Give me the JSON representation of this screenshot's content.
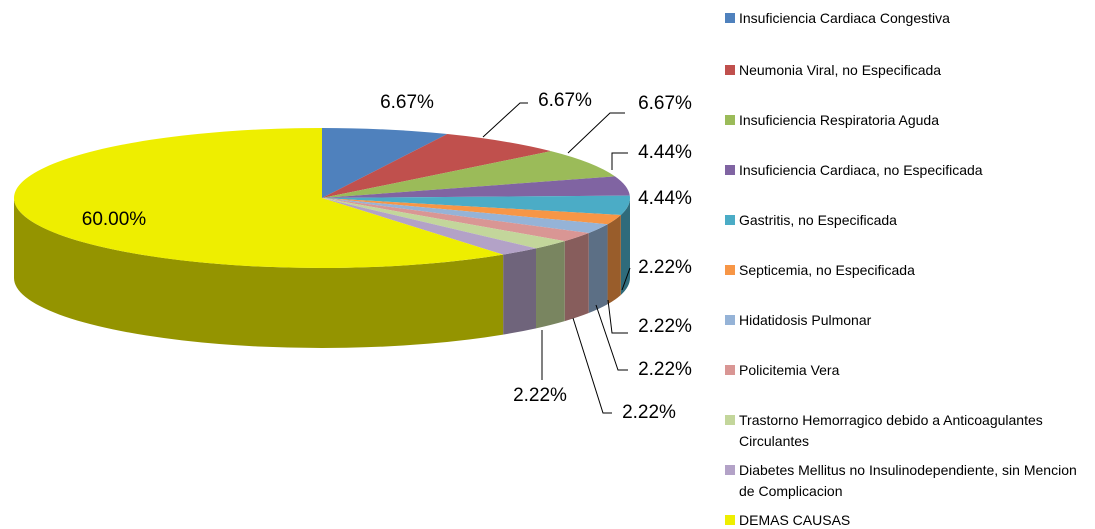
{
  "chart_data": {
    "type": "pie3d",
    "categories": [
      "Insuficiencia Cardiaca Congestiva",
      "Neumonia Viral, no Especificada",
      "Insuficiencia Respiratoria Aguda",
      "Insuficiencia Cardiaca, no Especificada",
      "Gastritis, no Especificada",
      "Septicemia, no Especificada",
      "Hidatidosis Pulmonar",
      "Policitemia Vera",
      "Trastorno Hemorragico debido a Anticoagulantes Circulantes",
      "Diabetes Mellitus no Insulinodependiente, sin Mencion de Complicacion",
      "DEMAS CAUSAS"
    ],
    "values": [
      6.67,
      6.67,
      6.67,
      4.44,
      4.44,
      2.22,
      2.22,
      2.22,
      2.22,
      2.22,
      60.0
    ],
    "value_labels": [
      "6.67%",
      "6.67%",
      "6.67%",
      "4.44%",
      "4.44%",
      "2.22%",
      "2.22%",
      "2.22%",
      "2.22%",
      "2.22%",
      "60.00%"
    ],
    "colors": [
      "#4f81bd",
      "#c0504d",
      "#9bbb59",
      "#8064a2",
      "#4bacc6",
      "#f79646",
      "#95b3d7",
      "#d99694",
      "#c3d69b",
      "#b3a2c7",
      "#eeee00"
    ],
    "legend": "right"
  }
}
